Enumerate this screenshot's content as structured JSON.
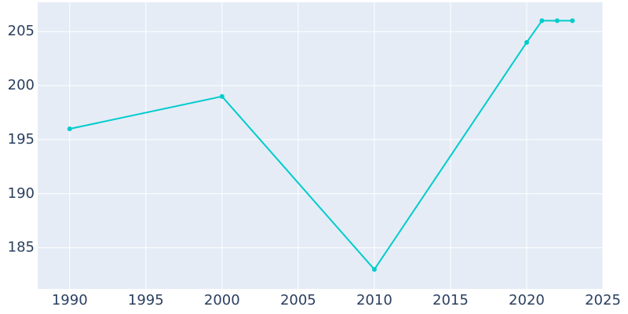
{
  "chart_data": {
    "type": "line",
    "x": [
      1990,
      2000,
      2010,
      2020,
      2021,
      2022,
      2023
    ],
    "series": [
      {
        "color": "#00cccc",
        "values": [
          196,
          199,
          183,
          204,
          206,
          206,
          206
        ]
      }
    ],
    "xlim": [
      1987.9,
      2025
    ],
    "xticks": [
      1990,
      1995,
      2000,
      2005,
      2010,
      2015,
      2020,
      2025
    ],
    "ylim": [
      181.2,
      207.7
    ],
    "yticks": [
      185,
      190,
      195,
      200,
      205
    ],
    "grid": true
  }
}
